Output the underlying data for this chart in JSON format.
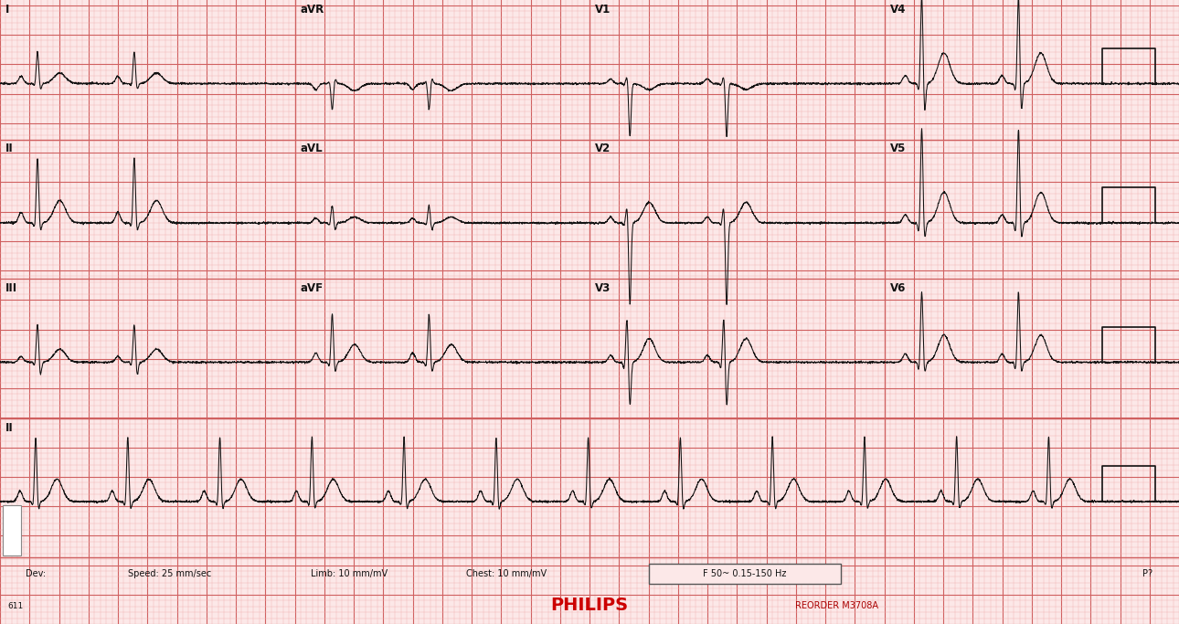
{
  "bg_color": "#fce8e8",
  "grid_minor_color": "#f0b0b0",
  "grid_major_color": "#d06060",
  "ecg_color": "#111111",
  "fig_width": 12.9,
  "fig_height": 6.83,
  "dpi": 100,
  "philips_color": "#cc0000",
  "reorder_color": "#aa0000",
  "footer_color": "#111111",
  "filter_text": "F 50~ 0.15-150 Hz",
  "philips_text": "PHILIPS",
  "reorder_text": "REORDER M3708A",
  "page_num": "611",
  "pq_text": "P?"
}
